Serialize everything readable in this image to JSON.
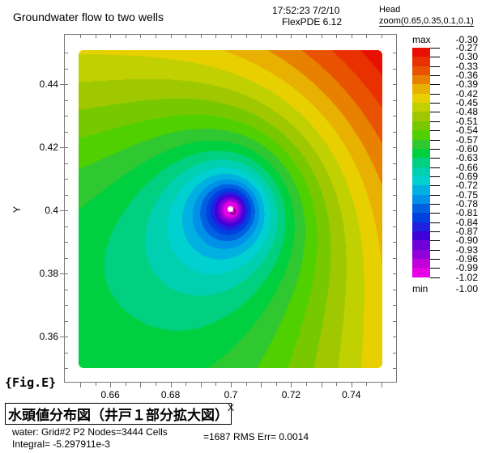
{
  "header": {
    "title": "Groundwater flow to two wells",
    "time": "17:52:23 7/2/10",
    "version": "FlexPDE 6.12",
    "plot_var": "Head",
    "zoom": "zoom(0.65,0.35,0.1,0.1)"
  },
  "footer": {
    "fig_tag": "{Fig.E}",
    "jp_title": "水頭値分布図（井戸１部分拡大図）",
    "stats_line1a": "water:  Grid#2  P2  Nodes=3444 Cells",
    "stats_line1b": "=1687 RMS Err= 0.0014",
    "stats_line2": "Integral= -5.297911e-3"
  },
  "chart_data": {
    "type": "heatmap",
    "subtype": "filled-contour",
    "title": "Groundwater flow to two wells",
    "xlabel": "X",
    "ylabel": "Y",
    "xlim": [
      0.65,
      0.75
    ],
    "ylim": [
      0.35,
      0.45
    ],
    "x_ticks": [
      "0.66",
      "0.68",
      "0.7",
      "0.72",
      "0.74"
    ],
    "x_tick_values": [
      0.66,
      0.68,
      0.7,
      0.72,
      0.74
    ],
    "y_ticks": [
      "0.44",
      "0.42",
      "0.4",
      "0.38",
      "0.36"
    ],
    "y_tick_values": [
      0.44,
      0.42,
      0.4,
      0.38,
      0.36
    ],
    "well_location": [
      0.7,
      0.4
    ],
    "legend": {
      "placement": "right",
      "max_label": "max",
      "max_value": "-0.30",
      "min_label": "min",
      "min_value": "-1.00",
      "levels": [
        "-0.27",
        "-0.30",
        "-0.33",
        "-0.36",
        "-0.39",
        "-0.42",
        "-0.45",
        "-0.48",
        "-0.51",
        "-0.54",
        "-0.57",
        "-0.60",
        "-0.63",
        "-0.66",
        "-0.69",
        "-0.72",
        "-0.75",
        "-0.78",
        "-0.81",
        "-0.84",
        "-0.87",
        "-0.90",
        "-0.93",
        "-0.96",
        "-0.99",
        "-1.02"
      ],
      "colors": [
        "#e81000",
        "#e83000",
        "#e85200",
        "#e88000",
        "#e8b000",
        "#e8d000",
        "#c0d000",
        "#a0c800",
        "#78c800",
        "#50d000",
        "#30c830",
        "#00d040",
        "#00d080",
        "#00d0b0",
        "#00d0d0",
        "#00b0e0",
        "#0090e8",
        "#0060e0",
        "#0040e0",
        "#2020e0",
        "#4000d8",
        "#7000d8",
        "#9000d8",
        "#c000d8",
        "#e800e8"
      ]
    }
  }
}
